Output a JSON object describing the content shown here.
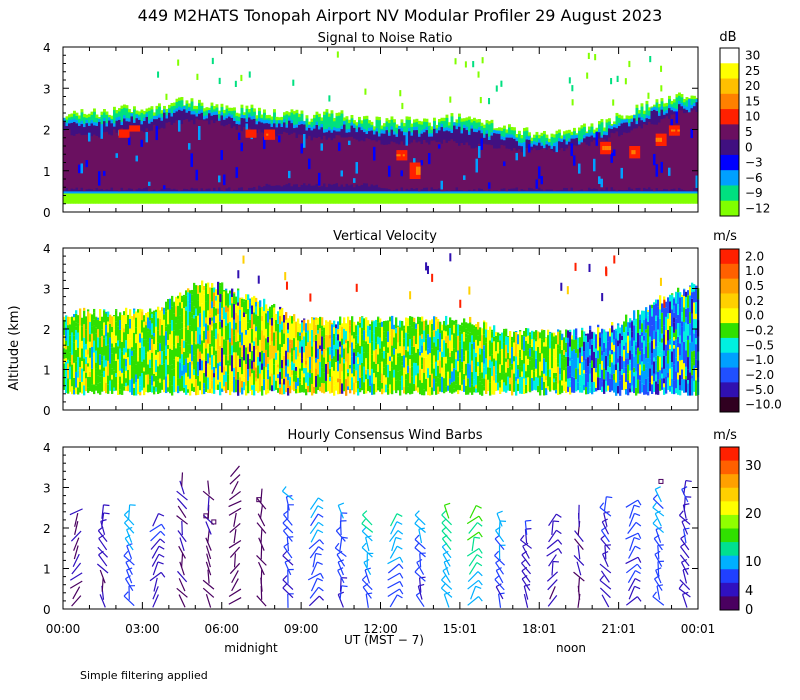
{
  "title": "449 M2HATS Tonopah Airport NV Modular Profiler 29 August 2023",
  "ylabel": "Altitude (km)",
  "xlabel": "UT  (MST − 7)",
  "footnote": "Simple filtering applied",
  "x_ticks": [
    "00:00",
    "03:00",
    "06:00",
    "09:00",
    "12:00",
    "15:01",
    "18:01",
    "21:01",
    "00:01"
  ],
  "x_annotations": {
    "midnight": "midnight",
    "noon": "noon"
  },
  "chart_data": [
    {
      "type": "heatmap",
      "title": "Signal to Noise Ratio",
      "ylabel": "Altitude (km)",
      "ylim": [
        0,
        4
      ],
      "y_ticks": [
        "0",
        "1",
        "2",
        "3",
        "4"
      ],
      "colorbar": {
        "unit": "dB",
        "labels": [
          "30",
          "25",
          "20",
          "15",
          "10",
          "5",
          "0",
          "−3",
          "−6",
          "−9",
          "−12"
        ],
        "colors": [
          "#ffffff",
          "#ffff00",
          "#ffc000",
          "#ff8000",
          "#ff2000",
          "#6a1060",
          "#401080",
          "#0000ff",
          "#00a0ff",
          "#00e080",
          "#80ff00"
        ]
      },
      "layers": [
        {
          "class": "noise",
          "bottom": [
            0.2,
            0.2,
            0.2,
            0.2,
            0.2,
            0.2,
            0.2,
            0.2,
            0.2,
            0.2,
            0.2,
            0.2,
            0.2,
            0.2,
            0.2,
            0.2,
            0.2,
            0.2,
            0.2,
            0.2,
            0.2,
            0.2,
            0.2,
            0.2,
            0.2,
            0.2,
            0.2,
            0.2,
            0.2,
            0.2,
            0.2,
            0.2
          ],
          "top": [
            2.3,
            2.4,
            2.4,
            2.5,
            2.4,
            2.6,
            2.7,
            2.6,
            2.5,
            2.5,
            2.4,
            2.4,
            2.3,
            2.4,
            2.3,
            2.2,
            2.2,
            2.2,
            2.2,
            2.3,
            2.2,
            2.1,
            2.0,
            1.9,
            1.9,
            2.0,
            2.1,
            2.3,
            2.5,
            2.7,
            2.8,
            2.9
          ]
        },
        {
          "class": "mid",
          "bottom": [
            0.45,
            0.45,
            0.45,
            0.45,
            0.45,
            0.45,
            0.45,
            0.45,
            0.45,
            0.45,
            0.45,
            0.45,
            0.45,
            0.45,
            0.45,
            0.45,
            0.45,
            0.45,
            0.45,
            0.45,
            0.45,
            0.45,
            0.45,
            0.45,
            0.45,
            0.45,
            0.45,
            0.45,
            0.45,
            0.45,
            0.45,
            0.45
          ],
          "top": [
            2.2,
            2.2,
            2.2,
            2.3,
            2.3,
            2.4,
            2.5,
            2.4,
            2.3,
            2.3,
            2.2,
            2.2,
            2.1,
            2.1,
            2.1,
            2.0,
            2.0,
            2.0,
            2.0,
            2.1,
            2.0,
            1.9,
            1.8,
            1.7,
            1.7,
            1.8,
            1.9,
            2.1,
            2.3,
            2.5,
            2.6,
            2.7
          ]
        },
        {
          "class": "strong",
          "bottom": [
            0.5,
            0.5,
            0.5,
            0.5,
            0.5,
            0.5,
            0.5,
            0.5,
            0.5,
            0.5,
            0.6,
            0.6,
            0.6,
            0.6,
            0.6,
            0.6,
            0.5,
            0.5,
            0.5,
            0.5,
            0.5,
            0.5,
            0.5,
            0.5,
            0.5,
            0.5,
            0.5,
            0.5,
            0.5,
            0.5,
            0.5,
            0.5
          ],
          "top": [
            2.0,
            1.8,
            1.9,
            2.0,
            2.0,
            2.1,
            2.2,
            2.2,
            2.1,
            2.0,
            1.9,
            1.9,
            1.8,
            1.8,
            1.8,
            1.7,
            1.7,
            1.7,
            1.7,
            1.7,
            1.6,
            1.6,
            1.5,
            1.5,
            1.5,
            1.6,
            1.7,
            1.9,
            2.0,
            2.2,
            2.4,
            2.5
          ]
        }
      ]
    },
    {
      "type": "heatmap",
      "title": "Vertical Velocity",
      "ylabel": "Altitude (km)",
      "ylim": [
        0,
        4
      ],
      "y_ticks": [
        "0",
        "1",
        "2",
        "3",
        "4"
      ],
      "colorbar": {
        "unit": "m/s",
        "labels": [
          "2.0",
          "1.0",
          "0.5",
          "0.2",
          "0.0",
          "−0.2",
          "−0.5",
          "−1.0",
          "−2.0",
          "−5.0",
          "−10.0"
        ],
        "colors": [
          "#ff2000",
          "#ff6000",
          "#ffa000",
          "#ffd000",
          "#ffff00",
          "#30e000",
          "#00f0e0",
          "#00a0ff",
          "#2050ff",
          "#3010b0",
          "#300020"
        ]
      },
      "coverage": {
        "bottom": [
          0.5,
          0.5,
          0.5,
          0.5,
          0.5,
          0.5,
          0.5,
          0.5,
          0.5,
          0.5,
          0.5,
          0.5,
          0.5,
          0.5,
          0.5,
          0.5,
          0.5,
          0.5,
          0.5,
          0.5,
          0.5,
          0.5,
          0.5,
          0.5,
          0.5,
          0.5,
          0.5,
          0.5,
          0.5,
          0.5,
          0.5,
          0.5
        ],
        "top": [
          2.4,
          2.4,
          2.4,
          2.4,
          2.4,
          2.6,
          3.0,
          3.1,
          3.0,
          2.8,
          2.6,
          2.3,
          2.2,
          2.2,
          2.2,
          2.2,
          2.2,
          2.2,
          2.2,
          2.2,
          2.2,
          2.0,
          1.9,
          1.9,
          1.9,
          1.9,
          2.0,
          2.1,
          2.4,
          2.7,
          2.9,
          3.1
        ]
      }
    },
    {
      "type": "wind_barbs",
      "title": "Hourly Consensus Wind Barbs",
      "ylabel": "Altitude (km)",
      "ylim": [
        0,
        4
      ],
      "y_ticks": [
        "0",
        "1",
        "2",
        "3",
        "4"
      ],
      "colorbar": {
        "unit": "m/s",
        "labels": [
          "30",
          "20",
          "10",
          "4",
          "0"
        ],
        "label_values": [
          30,
          20,
          10,
          4,
          0
        ],
        "vmax": 34,
        "colors": [
          "#ff2000",
          "#ff6000",
          "#ffa000",
          "#ffd000",
          "#ffff00",
          "#90ff00",
          "#30e000",
          "#00e090",
          "#00b0ff",
          "#2040ff",
          "#3010c0",
          "#4a0060"
        ]
      },
      "hours": [
        0.5,
        1.5,
        2.5,
        3.5,
        4.5,
        5.5,
        6.5,
        7.5,
        8.5,
        9.5,
        10.5,
        11.5,
        12.5,
        13.5,
        14.5,
        15.5,
        16.5,
        17.5,
        18.5,
        19.5,
        20.5,
        21.5,
        22.5,
        23.5
      ],
      "top_km": [
        2.5,
        2.4,
        2.5,
        2.3,
        3.3,
        3.2,
        3.5,
        3.0,
        2.9,
        2.6,
        2.5,
        2.3,
        2.2,
        2.3,
        2.5,
        2.4,
        2.3,
        2.1,
        2.3,
        2.5,
        2.6,
        2.8,
        3.0,
        3.2
      ],
      "speeds": [
        3,
        4,
        9,
        5,
        3,
        2,
        2,
        2,
        7,
        8,
        7,
        10,
        9,
        8,
        12,
        13,
        8,
        5,
        4,
        3,
        5,
        7,
        8,
        5
      ]
    }
  ]
}
